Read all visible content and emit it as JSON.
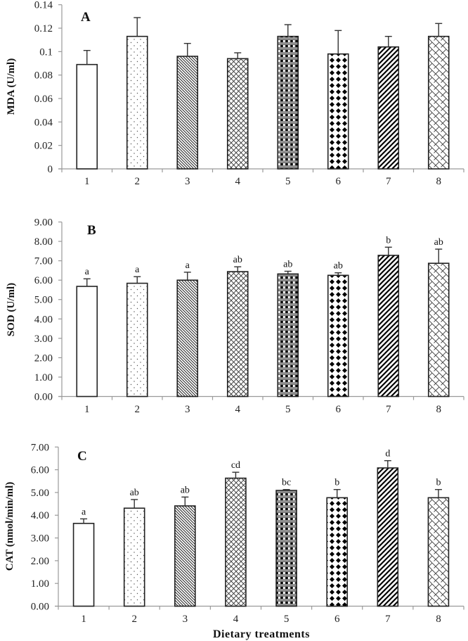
{
  "figure": {
    "xlabel": "Dietary treatments"
  },
  "chart_data": [
    {
      "type": "bar",
      "panel": "A",
      "title": "A",
      "xlabel": "",
      "ylabel": "MDA (U/ml)",
      "categories": [
        "1",
        "2",
        "3",
        "4",
        "5",
        "6",
        "7",
        "8"
      ],
      "values": [
        0.089,
        0.113,
        0.096,
        0.094,
        0.113,
        0.098,
        0.104,
        0.113
      ],
      "error": [
        0.012,
        0.016,
        0.011,
        0.005,
        0.01,
        0.02,
        0.009,
        0.011
      ],
      "significance": [
        "",
        "",
        "",
        "",
        "",
        "",
        "",
        ""
      ],
      "ylim": [
        0,
        0.14
      ],
      "yticks": [
        "0",
        "0.02",
        "0.04",
        "0.06",
        "0.08",
        "0.1",
        "0.12",
        "0.14"
      ],
      "ytick_values": [
        0,
        0.02,
        0.04,
        0.06,
        0.08,
        0.1,
        0.12,
        0.14
      ],
      "patterns": [
        "empty",
        "dots",
        "diag-thin",
        "crosshatch",
        "checker",
        "diamond",
        "diag-thick",
        "brick"
      ],
      "grid": false,
      "legend": "none"
    },
    {
      "type": "bar",
      "panel": "B",
      "title": "B",
      "xlabel": "",
      "ylabel": "SOD (U/ml)",
      "categories": [
        "1",
        "2",
        "3",
        "4",
        "5",
        "6",
        "7",
        "8"
      ],
      "values": [
        5.68,
        5.84,
        6.0,
        6.44,
        6.32,
        6.25,
        7.28,
        6.87
      ],
      "error": [
        0.39,
        0.34,
        0.41,
        0.25,
        0.14,
        0.13,
        0.42,
        0.73
      ],
      "significance": [
        "a",
        "a",
        "a",
        "ab",
        "ab",
        "ab",
        "b",
        "ab"
      ],
      "ylim": [
        0,
        9
      ],
      "yticks": [
        "0.00",
        "1.00",
        "2.00",
        "3.00",
        "4.00",
        "5.00",
        "6.00",
        "7.00",
        "8.00",
        "9.00"
      ],
      "ytick_values": [
        0,
        1,
        2,
        3,
        4,
        5,
        6,
        7,
        8,
        9
      ],
      "patterns": [
        "empty",
        "dots",
        "diag-thin",
        "crosshatch",
        "checker",
        "diamond",
        "diag-thick",
        "brick"
      ],
      "grid": false,
      "legend": "none"
    },
    {
      "type": "bar",
      "panel": "C",
      "title": "C",
      "xlabel": "Dietary treatments",
      "ylabel": "CAT (nmol/min/ml)",
      "categories": [
        "1",
        "2",
        "3",
        "4",
        "5",
        "6",
        "7",
        "8"
      ],
      "values": [
        3.64,
        4.31,
        4.41,
        5.63,
        5.09,
        4.77,
        6.08,
        4.77
      ],
      "error": [
        0.2,
        0.38,
        0.39,
        0.26,
        0.04,
        0.36,
        0.32,
        0.36
      ],
      "significance": [
        "a",
        "ab",
        "ab",
        "cd",
        "bc",
        "b",
        "d",
        "b"
      ],
      "ylim": [
        0,
        7
      ],
      "yticks": [
        "0.00",
        "1.00",
        "2.00",
        "3.00",
        "4.00",
        "5.00",
        "6.00",
        "7.00"
      ],
      "ytick_values": [
        0,
        1,
        2,
        3,
        4,
        5,
        6,
        7
      ],
      "patterns": [
        "empty",
        "dots",
        "diag-thin",
        "crosshatch",
        "checker",
        "diamond",
        "diag-thick",
        "brick"
      ],
      "grid": false,
      "legend": "none"
    }
  ]
}
